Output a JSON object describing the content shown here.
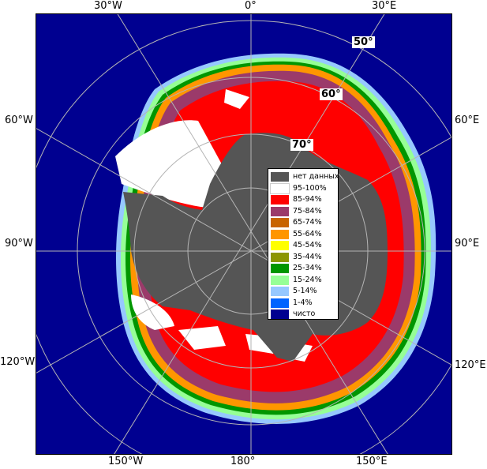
{
  "map": {
    "longitude_labels": {
      "lon_30w_top": "30°W",
      "lon_0_top": "0°",
      "lon_30e_top": "30°E",
      "lon_60w": "60°W",
      "lon_60e": "60°E",
      "lon_90w": "90°W",
      "lon_90e": "90°E",
      "lon_120w": "120°W",
      "lon_120e": "120°E",
      "lon_150w": "150°W",
      "lon_180": "180°",
      "lon_150e": "150°E"
    },
    "latitude_labels": {
      "lat_50": "50°",
      "lat_60": "60°",
      "lat_70": "70°"
    },
    "colors": {
      "ocean_clear": "#000090",
      "land_no_data": "#555555",
      "grid": "#b4b4b4"
    }
  },
  "legend": {
    "items": [
      {
        "label": "нет данных",
        "color": "#555555"
      },
      {
        "label": "95-100%",
        "color": "#ffffff"
      },
      {
        "label": "85-94%",
        "color": "#ff0000"
      },
      {
        "label": "75-84%",
        "color": "#9b3a6a"
      },
      {
        "label": "65-74%",
        "color": "#c86400"
      },
      {
        "label": "55-64%",
        "color": "#ff9600"
      },
      {
        "label": "45-54%",
        "color": "#ffff00"
      },
      {
        "label": "35-44%",
        "color": "#8c9600"
      },
      {
        "label": "25-34%",
        "color": "#009600"
      },
      {
        "label": "15-24%",
        "color": "#96ff96"
      },
      {
        "label": "5-14%",
        "color": "#96c8ff"
      },
      {
        "label": "1-4%",
        "color": "#0064ff"
      },
      {
        "label": "чисто",
        "color": "#000090"
      }
    ]
  }
}
